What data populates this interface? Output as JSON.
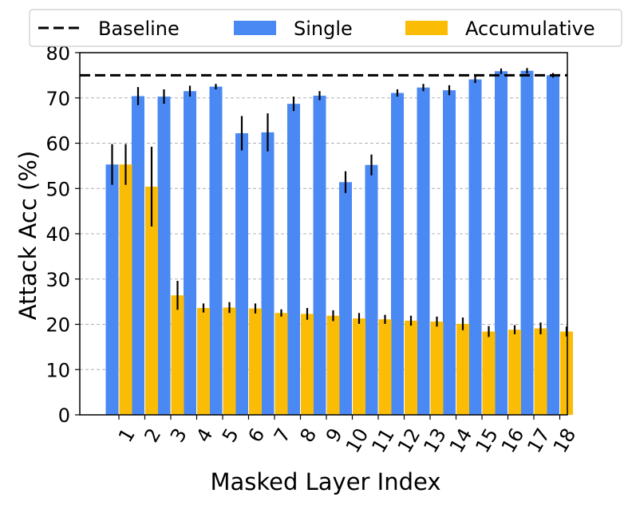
{
  "chart_data": {
    "type": "bar",
    "xlabel": "Masked Layer Index",
    "ylabel": "Attack Acc (%)",
    "categories": [
      "1",
      "2",
      "3",
      "4",
      "5",
      "6",
      "7",
      "8",
      "9",
      "10",
      "11",
      "12",
      "13",
      "14",
      "15",
      "16",
      "17",
      "18"
    ],
    "ylim": [
      0,
      80
    ],
    "yticks": [
      0,
      10,
      20,
      30,
      40,
      50,
      60,
      70,
      80
    ],
    "grid": "horizontal dashed",
    "legend_position": "top",
    "baseline": {
      "name": "Baseline",
      "value": 75,
      "color": "#000000"
    },
    "series": [
      {
        "name": "Single",
        "color": "#4a89f3",
        "values": [
          55.3,
          70.4,
          70.3,
          71.5,
          72.5,
          62.2,
          62.4,
          68.7,
          70.5,
          51.4,
          55.2,
          71.1,
          72.3,
          71.7,
          74.1,
          75.9,
          76.0,
          75.0
        ],
        "errors": [
          4.5,
          2.0,
          1.6,
          1.2,
          0.6,
          3.8,
          4.2,
          1.6,
          1.0,
          2.4,
          2.3,
          0.8,
          0.8,
          1.1,
          0.8,
          0.6,
          0.6,
          0.5
        ]
      },
      {
        "name": "Accumulative",
        "color": "#fbbc05",
        "values": [
          55.3,
          50.4,
          26.4,
          23.6,
          23.7,
          23.5,
          22.5,
          22.3,
          21.9,
          21.3,
          21.1,
          20.8,
          20.6,
          20.1,
          18.4,
          18.8,
          19.1,
          18.4
        ],
        "errors": [
          4.5,
          8.8,
          3.2,
          1.0,
          1.2,
          1.1,
          0.8,
          1.3,
          1.2,
          1.2,
          1.0,
          1.1,
          1.1,
          1.4,
          1.2,
          1.0,
          1.3,
          1.1
        ]
      }
    ]
  }
}
